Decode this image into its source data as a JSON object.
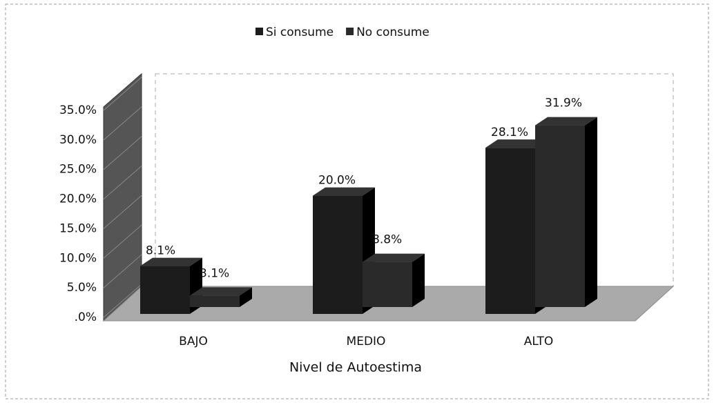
{
  "chart_data": {
    "type": "bar3d",
    "categories": [
      "BAJO",
      "MEDIO",
      "ALTO"
    ],
    "series": [
      {
        "name": "Si consume",
        "color": "#1c1c1c",
        "values": [
          8.1,
          20,
          28.1
        ],
        "value_labels": [
          "8.1%",
          "20.0%",
          "28.1%"
        ]
      },
      {
        "name": "No consume",
        "color": "#2a2a2a",
        "values": [
          3.1,
          8.8,
          31.9
        ],
        "value_labels": [
          "3.1%",
          "8.8%",
          "31.9%"
        ]
      }
    ],
    "xlabel": "Nivel de Autoestima",
    "ylim": [
      0,
      35
    ],
    "yticks": [
      {
        "value": 0,
        "label": ".0%"
      },
      {
        "value": 5,
        "label": "5.0%"
      },
      {
        "value": 10,
        "label": "10.0%"
      },
      {
        "value": 15,
        "label": "15.0%"
      },
      {
        "value": 20,
        "label": "20.0%"
      },
      {
        "value": 25,
        "label": "25.0%"
      },
      {
        "value": 30,
        "label": "30.0%"
      },
      {
        "value": 35,
        "label": "35.0%"
      }
    ],
    "legend": "top"
  }
}
